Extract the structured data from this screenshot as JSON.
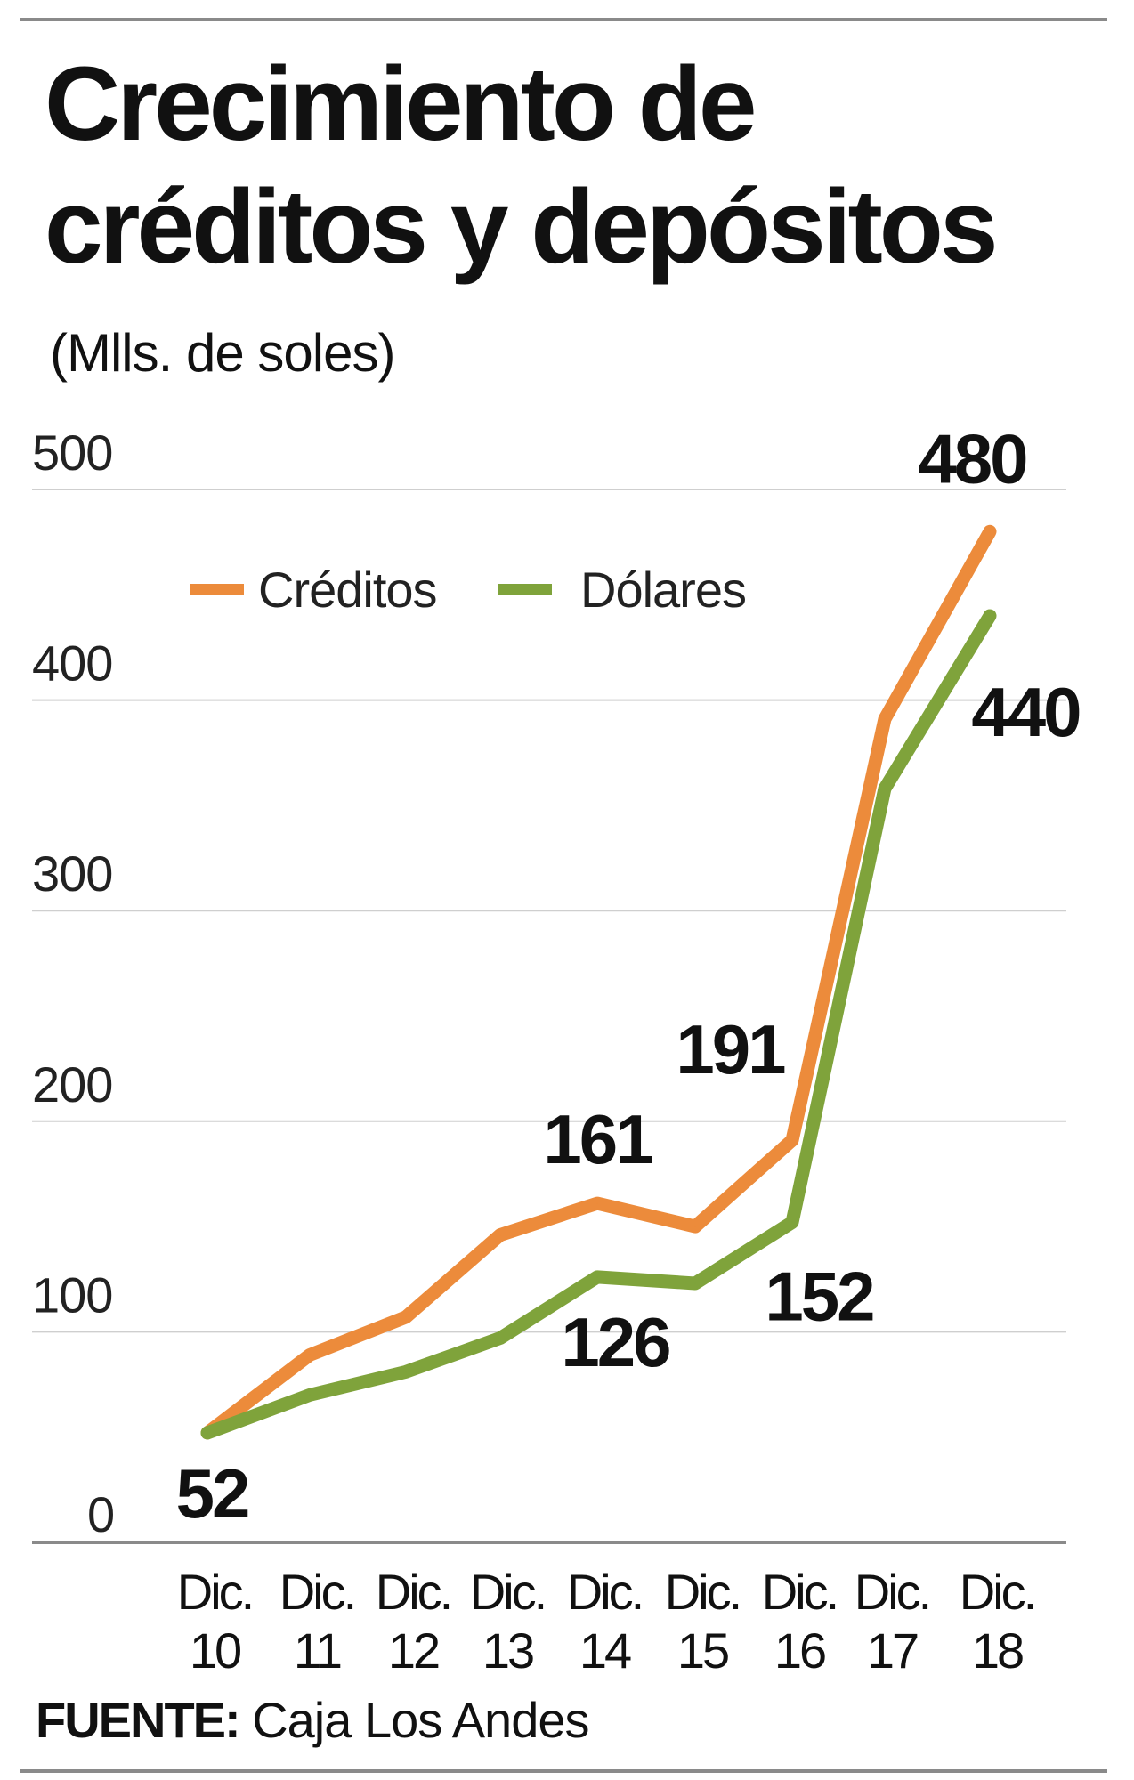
{
  "chart_data": {
    "type": "line",
    "title": "Crecimiento de créditos y depósitos",
    "title_lines": [
      "Crecimiento de",
      "créditos y depósitos"
    ],
    "subtitle": "(Mlls. de soles)",
    "categories": [
      [
        "Dic.",
        "10"
      ],
      [
        "Dic.",
        "11"
      ],
      [
        "Dic.",
        "12"
      ],
      [
        "Dic.",
        "13"
      ],
      [
        "Dic.",
        "14"
      ],
      [
        "Dic.",
        "15"
      ],
      [
        "Dic.",
        "16"
      ],
      [
        "Dic.",
        "17"
      ],
      [
        "Dic.",
        "18"
      ]
    ],
    "ylim": [
      0,
      500
    ],
    "yticks": [
      0,
      100,
      200,
      300,
      400,
      500
    ],
    "grid": true,
    "legend_position": "top-left",
    "series": [
      {
        "name": "Créditos",
        "color": "#ec8b3b",
        "values": [
          52,
          89,
          107,
          146,
          161,
          150,
          191,
          391,
          480
        ],
        "data_labels": [
          {
            "index": 4,
            "text": "161"
          },
          {
            "index": 6,
            "text": "191"
          },
          {
            "index": 8,
            "text": "480"
          }
        ]
      },
      {
        "name": "Dólares",
        "color": "#7fa33b",
        "values": [
          52,
          70,
          81,
          97,
          126,
          123,
          152,
          358,
          440
        ],
        "data_labels": [
          {
            "index": 0,
            "text": "52"
          },
          {
            "index": 4,
            "text": "126"
          },
          {
            "index": 6,
            "text": "152"
          },
          {
            "index": 8,
            "text": "440"
          }
        ]
      }
    ],
    "source_label": "FUENTE:",
    "source": "Caja Los Andes"
  }
}
